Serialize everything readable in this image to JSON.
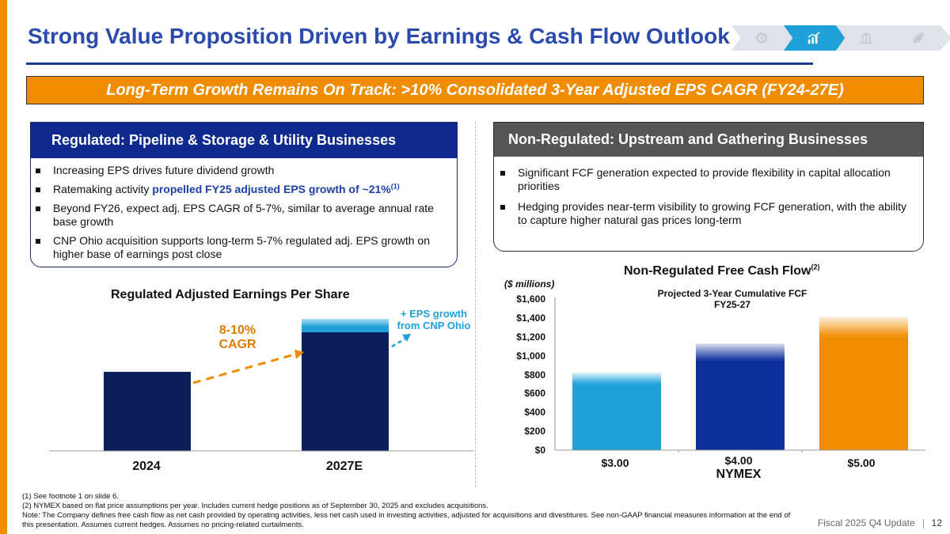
{
  "title": "Strong Value Proposition Driven by Earnings & Cash Flow Outlook",
  "nav_icons": [
    "gear-icon",
    "bar-chart-icon",
    "building-icon",
    "leaf-icon"
  ],
  "banner": "Long-Term Growth Remains On Track: >10% Consolidated 3-Year Adjusted EPS CAGR (FY24-27E)",
  "regulated": {
    "header": "Regulated: Pipeline & Storage & Utility Businesses",
    "b1": "Increasing EPS drives future dividend growth",
    "b2_pre": "Ratemaking activity ",
    "b2_hl": "propelled FY25 adjusted EPS growth of ~21%",
    "b2_sup": "(1)",
    "b3": "Beyond FY26, expect adj. EPS CAGR of 5-7%, similar to average annual rate base growth",
    "b4": "CNP Ohio acquisition supports long-term 5-7% regulated adj. EPS growth on higher base of earnings post close"
  },
  "nonregulated": {
    "header": "Non-Regulated: Upstream and Gathering Businesses",
    "b1": "Significant FCF generation expected to provide flexibility in capital allocation priorities",
    "b2": "Hedging provides near-term visibility to growing FCF generation, with the ability to capture higher natural gas prices long-term"
  },
  "eps_chart": {
    "title": "Regulated Adjusted Earnings Per Share",
    "cagr_line1": "8-10%",
    "cagr_line2": "CAGR",
    "cnp_line1": "+ EPS growth",
    "cnp_line2": "from CNP Ohio",
    "categories": [
      "2024",
      "2027E"
    ]
  },
  "fcf_chart": {
    "title": "Non-Regulated Free Cash Flow",
    "title_sup": "(2)",
    "unit": "($ millions)",
    "subtitle_line1": "Projected 3-Year Cumulative FCF",
    "subtitle_line2": "FY25-27",
    "xlabel": "NYMEX",
    "ticks": [
      "$0",
      "$200",
      "$400",
      "$600",
      "$800",
      "$1,000",
      "$1,200",
      "$1,400",
      "$1,600"
    ]
  },
  "chart_data": [
    {
      "type": "bar",
      "title": "Regulated Adjusted Earnings Per Share",
      "categories": [
        "2024",
        "2027E"
      ],
      "values_relative": [
        1.0,
        1.5
      ],
      "range_top_relative": 1.67,
      "colors": [
        "#0a1f5c",
        "#1fa1d8"
      ]
    },
    {
      "type": "bar",
      "title": "Non-Regulated Free Cash Flow",
      "categories": [
        "$3.00",
        "$4.00",
        "$5.00"
      ],
      "xlabel": "NYMEX",
      "ylabel": "($ millions)",
      "ylim": [
        0,
        1600
      ],
      "ranges": [
        [
          700,
          820
        ],
        [
          950,
          1130
        ],
        [
          1200,
          1410
        ]
      ],
      "colors": [
        "#1fa1d8",
        "#0e2f9c",
        "#f08c00"
      ]
    }
  ],
  "footnotes": {
    "f1": "(1)  See footnote 1 on slide 6.",
    "f2": "(2)  NYMEX based on flat price assumptions per year. Includes current hedge positions as of September 30, 2025 and excludes acquisitions.",
    "note": "Note: The Company defines free cash flow as net cash provided by operating activities, less net cash used in investing activities, adjusted for acquisitions and divestitures. See non-GAAP financial measures information at the end of this presentation. Assumes current hedges. Assumes no pricing-related curtailments."
  },
  "footer": {
    "label": "Fiscal 2025 Q4 Update",
    "page": "12"
  }
}
